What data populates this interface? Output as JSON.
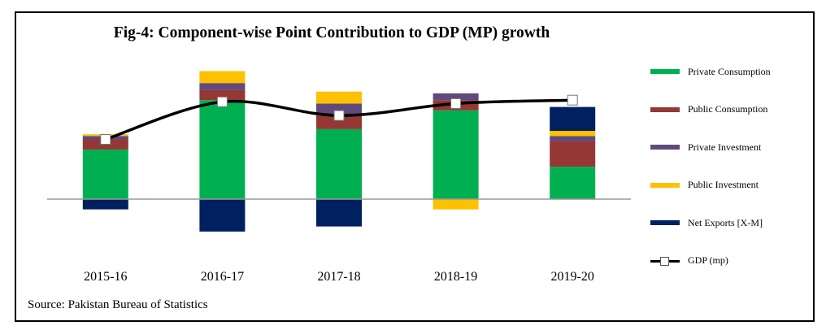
{
  "chart_data": {
    "type": "bar",
    "stacked": true,
    "title": "Fig-4: Component-wise Point Contribution to GDP (MP) growth",
    "categories": [
      "2015-16",
      "2016-17",
      "2017-18",
      "2018-19",
      "2019-20"
    ],
    "series": [
      {
        "name": "Private Consumption",
        "color": "#00b050",
        "values": [
          2.9,
          5.8,
          4.1,
          5.2,
          1.9
        ]
      },
      {
        "name": "Public Consumption",
        "color": "#953735",
        "values": [
          0.6,
          0.6,
          0.8,
          0.6,
          1.5
        ]
      },
      {
        "name": "Private Investment",
        "color": "#604a7b",
        "values": [
          0.2,
          0.4,
          0.7,
          0.4,
          0.3
        ]
      },
      {
        "name": "Public Investment",
        "color": "#ffc000",
        "values": [
          0.1,
          0.7,
          0.7,
          -0.6,
          0.3
        ]
      },
      {
        "name": "Net Exports [X-M]",
        "color": "#002060",
        "values": [
          -0.6,
          -1.9,
          -1.6,
          0.0,
          1.4
        ]
      }
    ],
    "line": {
      "name": "GDP (mp)",
      "values": [
        3.5,
        5.7,
        4.9,
        5.6,
        5.8
      ]
    },
    "ylim": [
      -2.5,
      7.6
    ],
    "legend_position": "right",
    "grid": false
  },
  "source": "Source: Pakistan Bureau of Statistics"
}
